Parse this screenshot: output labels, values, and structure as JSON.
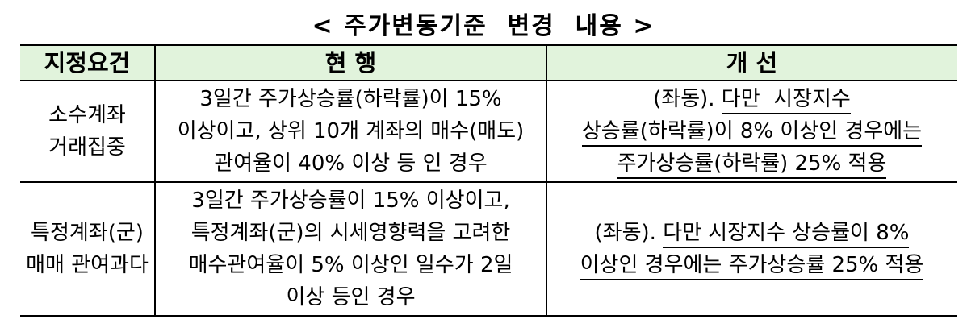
{
  "title": "< 주가변동기준  변경  내용 >",
  "table": {
    "header": {
      "requirement": "지정요건",
      "current": "현 행",
      "improved": "개 선",
      "bg_color": "#e1f3dc"
    },
    "rows": [
      {
        "requirement": [
          "소수계좌",
          "거래집중"
        ],
        "current": [
          "3일간 주가상승률(하락률)이 15%",
          "이상이고, 상위 10개 계좌의 매수(매도)",
          "관여율이 40% 이상 등 인 경우"
        ],
        "improved": [
          {
            "plain": "(좌동). ",
            "underlined": "다만  시장지수"
          },
          {
            "plain": "",
            "underlined": "상승률(하락률)이 8% 이상인 경우에는"
          },
          {
            "plain": "",
            "underlined": "주가상승률(하락률) 25% 적용"
          }
        ]
      },
      {
        "requirement": [
          "특정계좌(군)",
          "매매 관여과다"
        ],
        "current": [
          "3일간 주가상승률이 15% 이상이고,",
          "특정계좌(군)의 시세영향력을 고려한",
          "매수관여율이 5% 이상인 일수가 2일",
          "이상 등인 경우"
        ],
        "improved": [
          {
            "plain": "(좌동). ",
            "underlined": "다만 시장지수 상승률이 8%"
          },
          {
            "plain": "",
            "underlined": "이상인 경우에는 주가상승률 25% 적용"
          }
        ]
      }
    ]
  }
}
